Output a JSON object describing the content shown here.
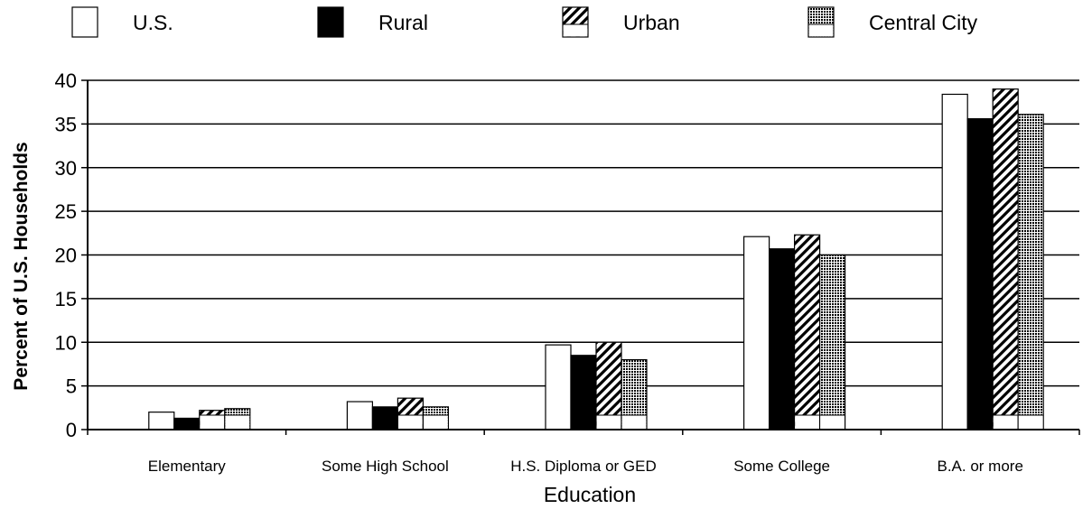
{
  "chart_data": {
    "type": "bar",
    "title": "",
    "xlabel": "Education",
    "ylabel": "Percent of U.S. Households",
    "ylim": [
      0,
      40
    ],
    "yticks": [
      0,
      5,
      10,
      15,
      20,
      25,
      30,
      35,
      40
    ],
    "grid": "horizontal",
    "legend_position": "top",
    "categories": [
      "Elementary",
      "Some High School",
      "H.S. Diploma or GED",
      "Some College",
      "B.A. or more"
    ],
    "series": [
      {
        "name": "U.S.",
        "pattern": "white",
        "values": [
          2.0,
          3.2,
          9.7,
          22.1,
          38.4
        ]
      },
      {
        "name": "Rural",
        "pattern": "black",
        "values": [
          1.3,
          2.6,
          8.5,
          20.7,
          35.6
        ]
      },
      {
        "name": "Urban",
        "pattern": "diagonal-hatch",
        "values": [
          2.2,
          3.6,
          10.0,
          22.3,
          39.0
        ]
      },
      {
        "name": "Central City",
        "pattern": "dotted",
        "values": [
          2.4,
          2.6,
          8.0,
          20.0,
          36.1
        ]
      }
    ]
  }
}
